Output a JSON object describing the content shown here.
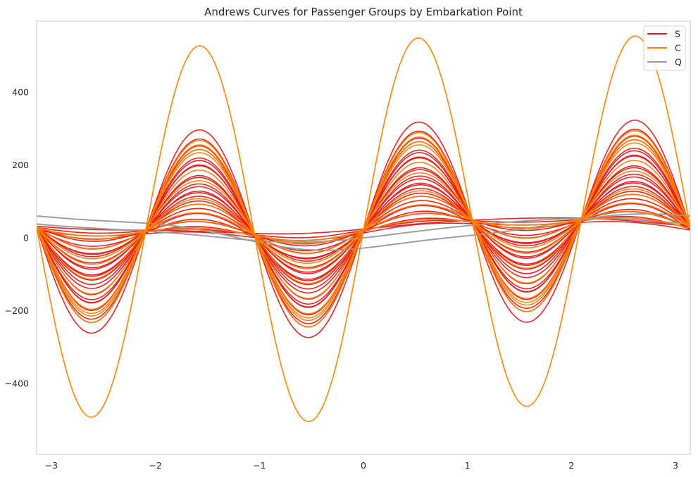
{
  "chart_data": {
    "type": "line",
    "title": "Andrews Curves for Passenger Groups by Embarkation Point",
    "xlabel": "",
    "ylabel": "",
    "xlim": [
      -3.14159,
      3.14159
    ],
    "ylim": [
      -595,
      595
    ],
    "xticks": [
      -3,
      -2,
      -1,
      0,
      1,
      2,
      3
    ],
    "xtick_labels": [
      "−3",
      "−2",
      "−1",
      "0",
      "1",
      "2",
      "3"
    ],
    "yticks": [
      -400,
      -200,
      0,
      200,
      400
    ],
    "ytick_labels": [
      "−400",
      "−200",
      "0",
      "200",
      "400"
    ],
    "grid": false,
    "legend_position": "top-right",
    "andrews_function": "f(t) = x1/√2 + x2·sin(t) + x3·cos(t) + x4·sin(2t) + x5·cos(2t) + x6·sin(3t) + x7·cos(3t)",
    "series": [
      {
        "name": "S",
        "color": "#e41a1c",
        "curves": [
          [
            45,
            20,
            -5,
            1,
            -4,
            2,
            1
          ],
          [
            40,
            20,
            -5,
            2,
            -4,
            32,
            1
          ],
          [
            42,
            20,
            -5,
            2,
            -4,
            54,
            1
          ],
          [
            44,
            20,
            -5,
            2,
            -4,
            77,
            1
          ],
          [
            38,
            20,
            -5,
            2,
            -4,
            103,
            1
          ],
          [
            40,
            20,
            -5,
            2,
            -4,
            128,
            1
          ],
          [
            42,
            20,
            -5,
            2,
            -4,
            152,
            1
          ],
          [
            45,
            20,
            -5,
            2,
            -4,
            182,
            1
          ],
          [
            44,
            20,
            -5,
            2,
            -4,
            204,
            1
          ],
          [
            46,
            20,
            -5,
            2,
            -4,
            226,
            1
          ],
          [
            43,
            20,
            -5,
            2,
            -4,
            257,
            1
          ],
          [
            40,
            20,
            -5,
            2,
            -4,
            284,
            1
          ],
          [
            40,
            20,
            -5,
            2,
            -4,
            200,
            1
          ],
          [
            36,
            20,
            -5,
            2,
            -4,
            243,
            1
          ],
          [
            38,
            20,
            -5,
            2,
            -4,
            160,
            1
          ],
          [
            42,
            20,
            -5,
            2,
            -4,
            110,
            1
          ],
          [
            40,
            20,
            -5,
            2,
            -4,
            68,
            1
          ],
          [
            35,
            20,
            -5,
            2,
            -4,
            42,
            1
          ],
          [
            38,
            20,
            -5,
            2,
            -4,
            137,
            1
          ],
          [
            37,
            20,
            -5,
            2,
            -4,
            190,
            1
          ],
          [
            41,
            20,
            -5,
            2,
            -4,
            10,
            1
          ],
          [
            35,
            20,
            -5,
            2,
            -4,
            22,
            1
          ],
          [
            38,
            20,
            -5,
            2,
            -4,
            90,
            1
          ],
          [
            34,
            20,
            -5,
            2,
            -4,
            120,
            1
          ],
          [
            30,
            20,
            -5,
            2,
            -4,
            10,
            1
          ],
          [
            32,
            20,
            -5,
            2,
            -4,
            60,
            1
          ]
        ]
      },
      {
        "name": "C",
        "color": "#ff7f00",
        "curves": [
          [
            40,
            20,
            -5,
            2,
            -4,
            515,
            1
          ],
          [
            40,
            20,
            -5,
            2,
            -4,
            255,
            1
          ],
          [
            44,
            20,
            -5,
            2,
            -4,
            240,
            1
          ],
          [
            40,
            20,
            -5,
            2,
            -4,
            230,
            1
          ],
          [
            42,
            20,
            -5,
            2,
            -4,
            220,
            1
          ],
          [
            38,
            20,
            -5,
            2,
            -4,
            175,
            1
          ],
          [
            46,
            20,
            -5,
            2,
            -4,
            140,
            1
          ],
          [
            40,
            20,
            -5,
            2,
            -4,
            95,
            1
          ],
          [
            40,
            20,
            -5,
            2,
            -4,
            80,
            1
          ],
          [
            42,
            20,
            -5,
            2,
            -4,
            55,
            1
          ],
          [
            44,
            20,
            -5,
            2,
            -4,
            30,
            1
          ],
          [
            38,
            20,
            -5,
            2,
            -4,
            16,
            1
          ]
        ]
      },
      {
        "name": "Q",
        "color": "#999999",
        "curves": [
          [
            32,
            22,
            -20,
            2,
            -4,
            2,
            1
          ],
          [
            28,
            8,
            -45,
            2,
            -4,
            6,
            1
          ]
        ]
      }
    ]
  }
}
